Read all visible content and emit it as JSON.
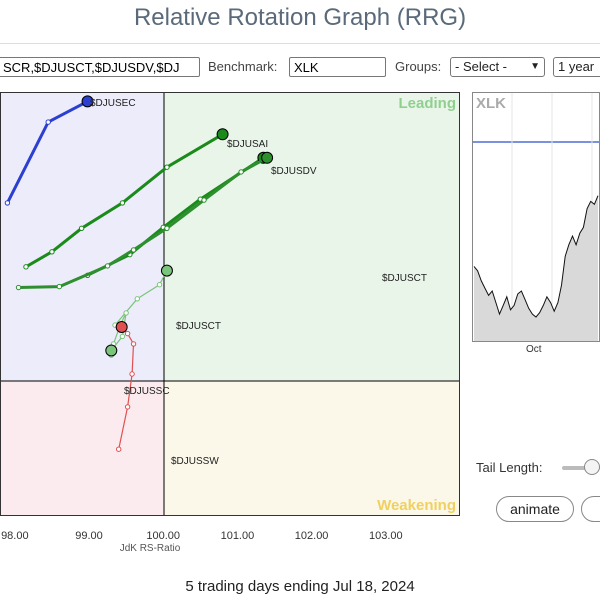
{
  "header": {
    "title": "Relative Rotation Graph (RRG)"
  },
  "controls": {
    "symbols_value": "SCR,$DJUSCT,$DJUSDV,$DJ",
    "benchmark_label": "Benchmark:",
    "benchmark_value": "XLK",
    "groups_label": "Groups:",
    "groups_selected": "- Select -",
    "period_selected": "1 year"
  },
  "chart_data": {
    "type": "scatter",
    "xlabel": "JdK RS-Ratio",
    "ylabel": "",
    "xlim": [
      97.8,
      104.0
    ],
    "ylim": [
      97.8,
      102.3
    ],
    "xticks": [
      "98.00",
      "99.00",
      "100.00",
      "101.00",
      "102.00",
      "103.00"
    ],
    "quadrants": {
      "top_right": "Leading",
      "bottom_right": "Weakening"
    },
    "colors": {
      "leading": "#2ca02c",
      "weakening": "#f0c040",
      "lagging": "#e06070",
      "improving": "#6b73d6"
    },
    "series": [
      {
        "name": "$DJUSEC",
        "color": "#2b3fd0",
        "points": [
          [
            97.9,
            101.12
          ],
          [
            98.45,
            101.98
          ],
          [
            98.98,
            102.2
          ]
        ]
      },
      {
        "name": "$DJUSAI",
        "color": "#1a8a1a",
        "points": [
          [
            98.15,
            100.44
          ],
          [
            98.5,
            100.6
          ],
          [
            98.9,
            100.85
          ],
          [
            99.45,
            101.12
          ],
          [
            100.05,
            101.5
          ],
          [
            100.8,
            101.85
          ]
        ]
      },
      {
        "name": "$DJUSDV",
        "color": "#1a8a1a",
        "points": [
          [
            98.98,
            100.35
          ],
          [
            99.55,
            100.57
          ],
          [
            100.0,
            100.86
          ],
          [
            100.5,
            101.16
          ],
          [
            101.35,
            101.6
          ]
        ]
      },
      {
        "name": "$DJUSCT",
        "color": "#2d8f2d",
        "points": [
          [
            98.05,
            100.22
          ],
          [
            98.6,
            100.23
          ],
          [
            99.25,
            100.45
          ],
          [
            99.6,
            100.62
          ],
          [
            100.05,
            100.85
          ],
          [
            100.55,
            101.15
          ],
          [
            101.05,
            101.45
          ],
          [
            101.4,
            101.6
          ]
        ]
      },
      {
        "name": "$DJUSCT",
        "color": "#7bc47b",
        "points": [
          [
            99.35,
            99.82
          ],
          [
            99.65,
            100.1
          ],
          [
            99.95,
            100.25
          ],
          [
            100.05,
            100.4
          ]
        ]
      },
      {
        "name": "$DJUSSC",
        "color": "#7bc47b",
        "points": [
          [
            99.3,
            99.5
          ],
          [
            99.33,
            99.62
          ],
          [
            99.42,
            99.82
          ],
          [
            99.5,
            99.95
          ],
          [
            99.45,
            99.7
          ],
          [
            99.3,
            99.55
          ]
        ]
      },
      {
        "name": "$DJUSSW",
        "color": "#e05050",
        "points": [
          [
            99.4,
            98.5
          ],
          [
            99.52,
            98.95
          ],
          [
            99.58,
            99.3
          ],
          [
            99.6,
            99.62
          ],
          [
            99.52,
            99.73
          ],
          [
            99.44,
            99.8
          ]
        ]
      }
    ]
  },
  "labels": {
    "djusec": "$DJUSEC",
    "djusai": "$DJUSAI",
    "djusdv": "$DJUSDV",
    "djusct_right": "$DJUSCT",
    "djusct": "$DJUSCT",
    "djussc": "$DJUSSC",
    "djussw": "$DJUSSW"
  },
  "mini_chart": {
    "title": "XLK",
    "x_label": "Oct",
    "line_color": "#2b4fd0",
    "values": [
      0.15,
      0.12,
      0.05,
      0.0,
      -0.05,
      -0.02,
      -0.1,
      -0.18,
      -0.12,
      -0.06,
      -0.15,
      -0.12,
      -0.04,
      -0.02,
      -0.08,
      -0.14,
      -0.18,
      -0.2,
      -0.17,
      -0.12,
      -0.06,
      -0.1,
      -0.16,
      -0.1,
      0.02,
      0.22,
      0.3,
      0.36,
      0.3,
      0.38,
      0.42,
      0.55,
      0.6,
      0.58,
      0.64
    ]
  },
  "bottom": {
    "tail_length_label": "Tail Length:",
    "tail_length_value": 0.7,
    "animate_label": "animate",
    "footer": "5 trading days ending Jul 18, 2024"
  }
}
